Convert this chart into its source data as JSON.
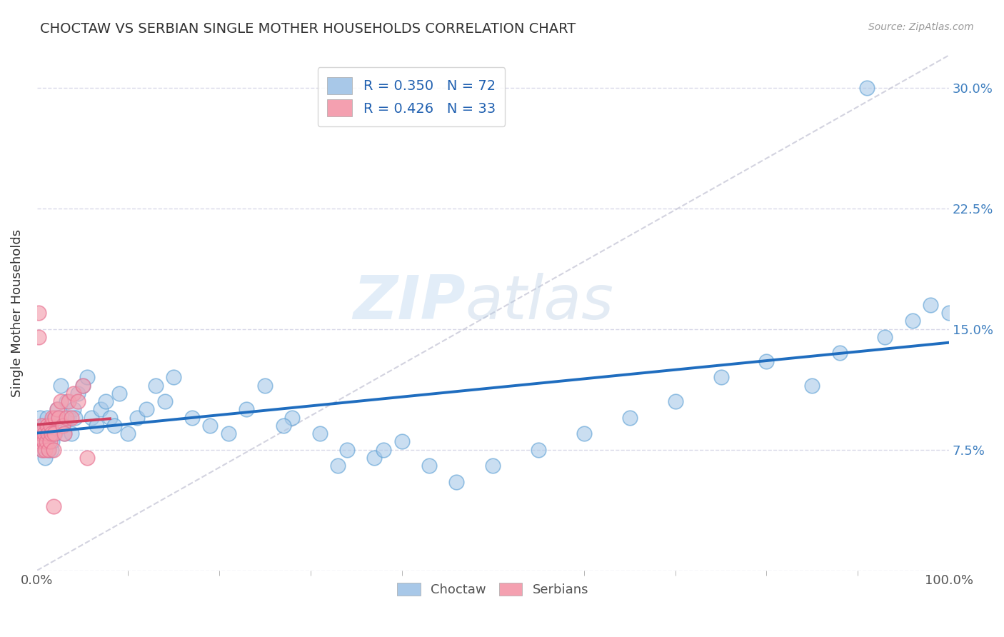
{
  "title": "CHOCTAW VS SERBIAN SINGLE MOTHER HOUSEHOLDS CORRELATION CHART",
  "source": "Source: ZipAtlas.com",
  "ylabel": "Single Mother Households",
  "xlim": [
    0,
    1.0
  ],
  "ylim": [
    0,
    0.32
  ],
  "xticks": [
    0.0,
    0.25,
    0.5,
    0.75,
    1.0
  ],
  "xticklabels": [
    "0.0%",
    "",
    "",
    "",
    "100.0%"
  ],
  "yticks": [
    0.0,
    0.075,
    0.15,
    0.225,
    0.3
  ],
  "yticklabels_right": [
    "",
    "7.5%",
    "15.0%",
    "22.5%",
    "30.0%"
  ],
  "choctaw_color": "#a8c8e8",
  "serbian_color": "#f4a0b0",
  "choctaw_edge_color": "#5a9fd4",
  "serbian_edge_color": "#e87090",
  "choctaw_line_color": "#1f6dbf",
  "serbian_line_color": "#d04060",
  "diagonal_color": "#c8c8d8",
  "watermark_zip": "ZIP",
  "watermark_atlas": "atlas",
  "legend_label1": "R = 0.350   N = 72",
  "legend_label2": "R = 0.426   N = 33",
  "bottom_label1": "Choctaw",
  "bottom_label2": "Serbians",
  "background_color": "#ffffff",
  "grid_color": "#d8d8e8",
  "choctaw_x": [
    0.003,
    0.005,
    0.006,
    0.007,
    0.008,
    0.009,
    0.01,
    0.011,
    0.012,
    0.013,
    0.014,
    0.015,
    0.016,
    0.017,
    0.018,
    0.019,
    0.02,
    0.022,
    0.024,
    0.026,
    0.028,
    0.03,
    0.032,
    0.035,
    0.038,
    0.04,
    0.042,
    0.045,
    0.05,
    0.055,
    0.06,
    0.065,
    0.07,
    0.075,
    0.08,
    0.085,
    0.09,
    0.1,
    0.11,
    0.12,
    0.13,
    0.14,
    0.15,
    0.17,
    0.19,
    0.21,
    0.23,
    0.25,
    0.28,
    0.31,
    0.34,
    0.37,
    0.4,
    0.43,
    0.46,
    0.5,
    0.55,
    0.6,
    0.65,
    0.7,
    0.75,
    0.8,
    0.85,
    0.88,
    0.91,
    0.93,
    0.96,
    0.98,
    1.0,
    0.27,
    0.33,
    0.38
  ],
  "choctaw_y": [
    0.095,
    0.085,
    0.075,
    0.08,
    0.09,
    0.07,
    0.085,
    0.095,
    0.08,
    0.075,
    0.09,
    0.085,
    0.075,
    0.08,
    0.09,
    0.095,
    0.085,
    0.1,
    0.095,
    0.115,
    0.09,
    0.085,
    0.105,
    0.095,
    0.085,
    0.1,
    0.095,
    0.11,
    0.115,
    0.12,
    0.095,
    0.09,
    0.1,
    0.105,
    0.095,
    0.09,
    0.11,
    0.085,
    0.095,
    0.1,
    0.115,
    0.105,
    0.12,
    0.095,
    0.09,
    0.085,
    0.1,
    0.115,
    0.095,
    0.085,
    0.075,
    0.07,
    0.08,
    0.065,
    0.055,
    0.065,
    0.075,
    0.085,
    0.095,
    0.105,
    0.12,
    0.13,
    0.115,
    0.135,
    0.3,
    0.145,
    0.155,
    0.165,
    0.16,
    0.09,
    0.065,
    0.075
  ],
  "serbian_x": [
    0.002,
    0.003,
    0.004,
    0.005,
    0.006,
    0.007,
    0.008,
    0.009,
    0.01,
    0.011,
    0.012,
    0.013,
    0.014,
    0.015,
    0.016,
    0.017,
    0.018,
    0.019,
    0.02,
    0.022,
    0.024,
    0.026,
    0.028,
    0.03,
    0.032,
    0.035,
    0.038,
    0.04,
    0.045,
    0.05,
    0.055,
    0.002,
    0.018
  ],
  "serbian_y": [
    0.145,
    0.08,
    0.085,
    0.09,
    0.075,
    0.08,
    0.085,
    0.075,
    0.08,
    0.09,
    0.085,
    0.075,
    0.08,
    0.09,
    0.085,
    0.095,
    0.075,
    0.085,
    0.095,
    0.1,
    0.095,
    0.105,
    0.09,
    0.085,
    0.095,
    0.105,
    0.095,
    0.11,
    0.105,
    0.115,
    0.07,
    0.16,
    0.04
  ]
}
